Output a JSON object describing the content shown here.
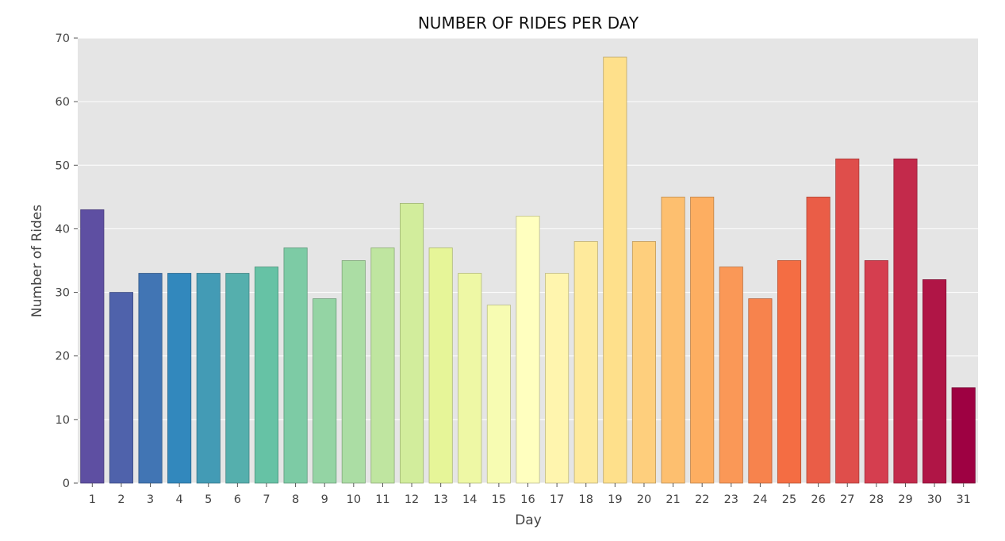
{
  "chart_data": {
    "type": "bar",
    "title": "NUMBER OF RIDES PER DAY",
    "xlabel": "Day",
    "ylabel": "Number of Rides",
    "categories": [
      "1",
      "2",
      "3",
      "4",
      "5",
      "6",
      "7",
      "8",
      "9",
      "10",
      "11",
      "12",
      "13",
      "14",
      "15",
      "16",
      "17",
      "18",
      "19",
      "20",
      "21",
      "22",
      "23",
      "24",
      "25",
      "26",
      "27",
      "28",
      "29",
      "30",
      "31"
    ],
    "values": [
      43,
      30,
      33,
      33,
      33,
      33,
      34,
      37,
      29,
      35,
      37,
      44,
      37,
      33,
      28,
      42,
      33,
      38,
      67,
      38,
      45,
      45,
      34,
      29,
      35,
      45,
      51,
      35,
      51,
      32,
      15
    ],
    "ylim": [
      0,
      70
    ],
    "yticks": [
      0,
      10,
      20,
      30,
      40,
      50,
      60,
      70
    ],
    "grid": true,
    "palette": "Spectral_r",
    "background_color": "#e5e5e5",
    "grid_color": "#ffffff"
  }
}
